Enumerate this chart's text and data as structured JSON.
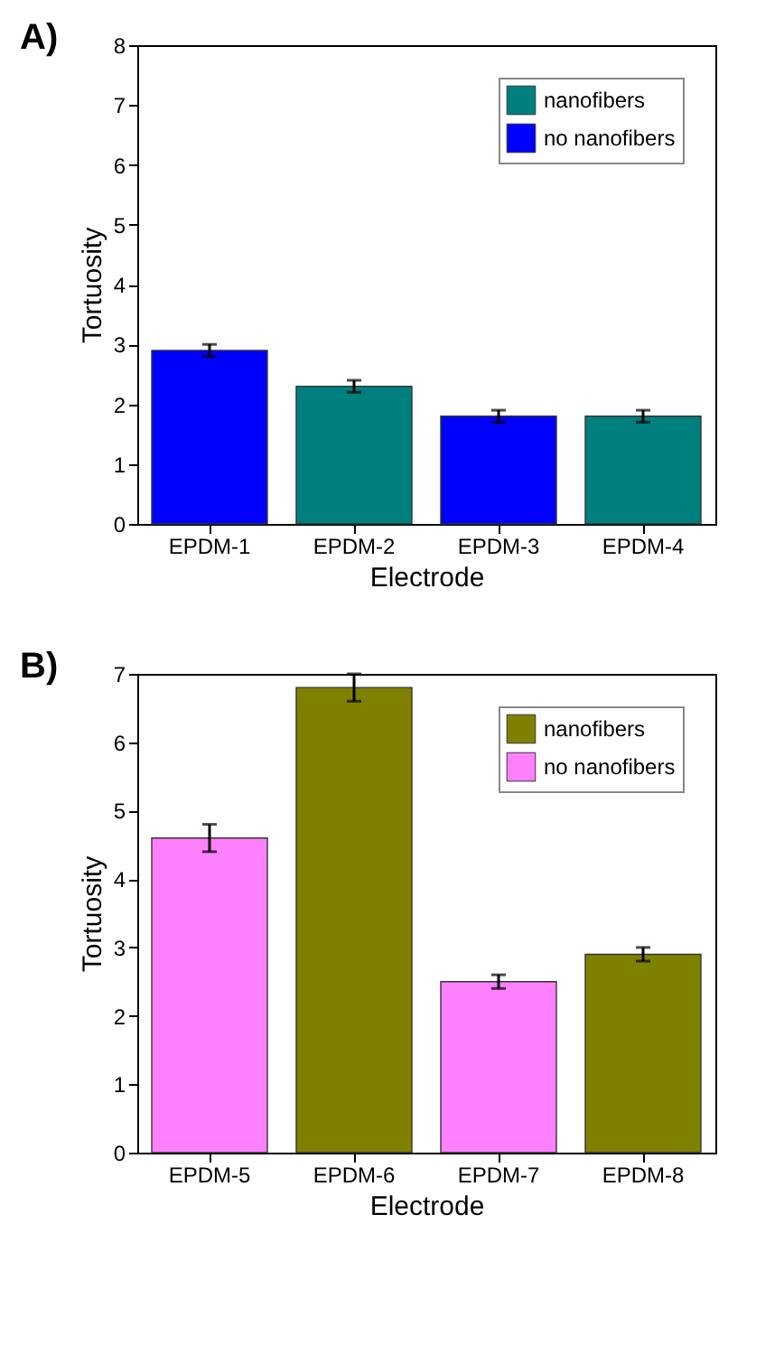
{
  "chart_data": [
    {
      "type": "bar",
      "title": "A)",
      "xlabel": "Electrode",
      "ylabel": "Tortuosity",
      "categories": [
        "EPDM-1",
        "EPDM-2",
        "EPDM-3",
        "EPDM-4"
      ],
      "ylim": [
        0,
        8
      ],
      "yticks": [
        0,
        1,
        2,
        3,
        4,
        5,
        6,
        7,
        8
      ],
      "grid": false,
      "legend": "top right",
      "series": [
        {
          "name": "nanofibers",
          "color": "#007f7f",
          "values": [
            null,
            2.3,
            null,
            1.8
          ],
          "errors": [
            null,
            0.1,
            null,
            0.1
          ]
        },
        {
          "name": "no nanofibers",
          "color": "#0000ff",
          "values": [
            2.9,
            null,
            1.8,
            null
          ],
          "errors": [
            0.1,
            null,
            0.1,
            null
          ]
        }
      ]
    },
    {
      "type": "bar",
      "title": "B)",
      "xlabel": "Electrode",
      "ylabel": "Tortuosity",
      "categories": [
        "EPDM-5",
        "EPDM-6",
        "EPDM-7",
        "EPDM-8"
      ],
      "ylim": [
        0,
        7
      ],
      "yticks": [
        0,
        1,
        2,
        3,
        4,
        5,
        6,
        7
      ],
      "grid": false,
      "legend": "top right",
      "series": [
        {
          "name": "nanofibers",
          "color": "#808000",
          "values": [
            null,
            6.8,
            null,
            2.9
          ],
          "errors": [
            null,
            0.2,
            null,
            0.1
          ]
        },
        {
          "name": "no nanofibers",
          "color": "#ff80ff",
          "values": [
            4.6,
            null,
            2.5,
            null
          ],
          "errors": [
            0.2,
            null,
            0.1,
            null
          ]
        }
      ]
    }
  ]
}
